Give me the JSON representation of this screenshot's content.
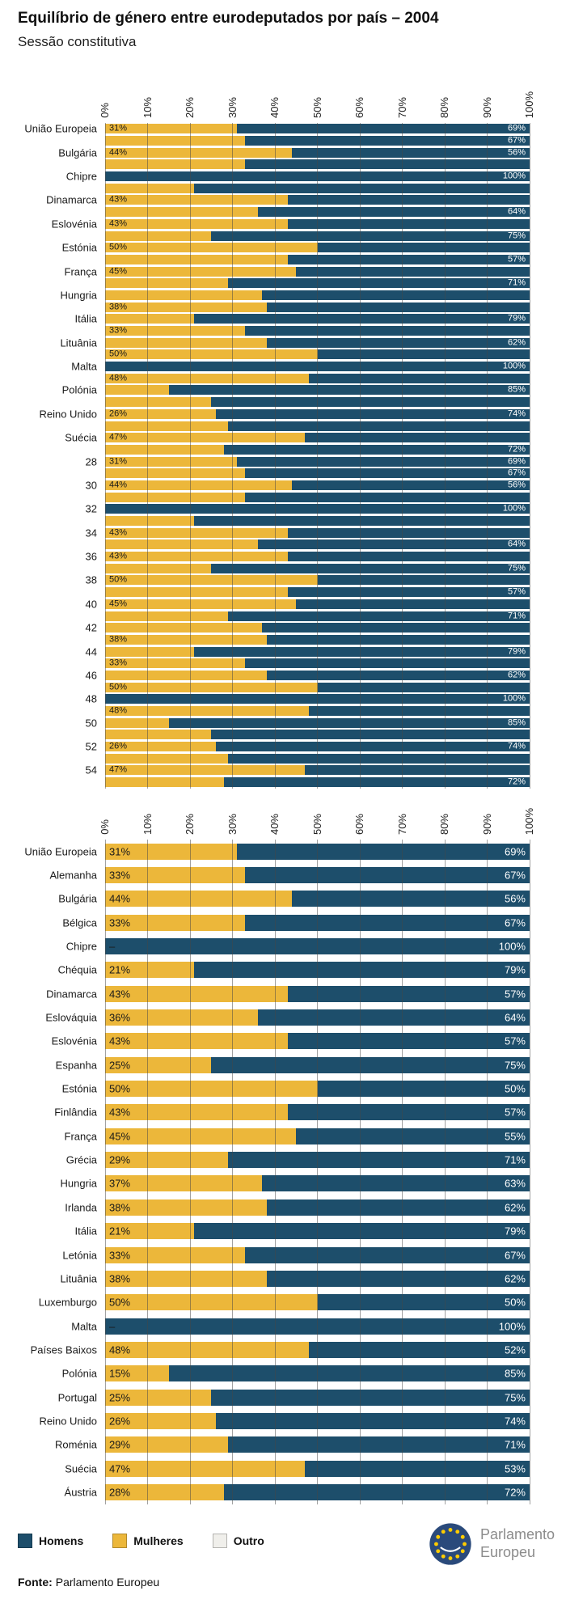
{
  "title": "Equilíbrio de género entre eurodeputados por país – 2004",
  "subtitle": "Sessão constitutiva",
  "colors": {
    "men": "#1D4E6B",
    "women": "#ECB73A",
    "other": "#F0EFEB",
    "grid": "#4A4A4A",
    "value_label_dark": "#1A1A1A",
    "value_label_light": "#FFFFFF"
  },
  "chart_data": [
    {
      "id": "constitutive-session-top-chart",
      "type": "bar",
      "stacked": true,
      "orientation": "horizontal",
      "unit": "%",
      "xlim": [
        0,
        100
      ],
      "grid": true,
      "x_ticks": [
        "0%",
        "10%",
        "20%",
        "30%",
        "40%",
        "50%",
        "60%",
        "70%",
        "80%",
        "90%",
        "100%"
      ],
      "columns": [
        "y_label",
        "women_pct",
        "men_pct",
        "women_label",
        "men_label"
      ],
      "rows": [
        [
          "União Europeia",
          31,
          69,
          "31%",
          "69%"
        ],
        [
          "",
          33,
          67,
          "",
          "67%"
        ],
        [
          "Bulgária",
          44,
          56,
          "44%",
          "56%"
        ],
        [
          "",
          33,
          67,
          "",
          ""
        ],
        [
          "Chipre",
          0,
          100,
          "",
          "100%"
        ],
        [
          "",
          21,
          79,
          "",
          ""
        ],
        [
          "Dinamarca",
          43,
          57,
          "43%",
          ""
        ],
        [
          "",
          36,
          64,
          "",
          "64%"
        ],
        [
          "Eslovénia",
          43,
          57,
          "43%",
          ""
        ],
        [
          "",
          25,
          75,
          "",
          "75%"
        ],
        [
          "Estónia",
          50,
          50,
          "50%",
          ""
        ],
        [
          "",
          43,
          57,
          "",
          "57%"
        ],
        [
          "França",
          45,
          55,
          "45%",
          ""
        ],
        [
          "",
          29,
          71,
          "",
          "71%"
        ],
        [
          "Hungria",
          37,
          63,
          "",
          ""
        ],
        [
          "",
          38,
          62,
          "38%",
          ""
        ],
        [
          "Itália",
          21,
          79,
          "",
          "79%"
        ],
        [
          "",
          33,
          67,
          "33%",
          ""
        ],
        [
          "Lituânia",
          38,
          62,
          "",
          "62%"
        ],
        [
          "",
          50,
          50,
          "50%",
          ""
        ],
        [
          "Malta",
          0,
          100,
          "",
          "100%"
        ],
        [
          "",
          48,
          52,
          "48%",
          ""
        ],
        [
          "Polónia",
          15,
          85,
          "",
          "85%"
        ],
        [
          "",
          25,
          75,
          "",
          ""
        ],
        [
          "Reino Unido",
          26,
          74,
          "26%",
          "74%"
        ],
        [
          "",
          29,
          71,
          "",
          ""
        ],
        [
          "Suécia",
          47,
          53,
          "47%",
          ""
        ],
        [
          "",
          28,
          72,
          "",
          "72%"
        ],
        [
          "28",
          31,
          69,
          "31%",
          "69%"
        ],
        [
          "",
          33,
          67,
          "",
          "67%"
        ],
        [
          "30",
          44,
          56,
          "44%",
          "56%"
        ],
        [
          "",
          33,
          67,
          "",
          ""
        ],
        [
          "32",
          0,
          100,
          "",
          "100%"
        ],
        [
          "",
          21,
          79,
          "",
          ""
        ],
        [
          "34",
          43,
          57,
          "43%",
          ""
        ],
        [
          "",
          36,
          64,
          "",
          "64%"
        ],
        [
          "36",
          43,
          57,
          "43%",
          ""
        ],
        [
          "",
          25,
          75,
          "",
          "75%"
        ],
        [
          "38",
          50,
          50,
          "50%",
          ""
        ],
        [
          "",
          43,
          57,
          "",
          "57%"
        ],
        [
          "40",
          45,
          55,
          "45%",
          ""
        ],
        [
          "",
          29,
          71,
          "",
          "71%"
        ],
        [
          "42",
          37,
          63,
          "",
          ""
        ],
        [
          "",
          38,
          62,
          "38%",
          ""
        ],
        [
          "44",
          21,
          79,
          "",
          "79%"
        ],
        [
          "",
          33,
          67,
          "33%",
          ""
        ],
        [
          "46",
          38,
          62,
          "",
          "62%"
        ],
        [
          "",
          50,
          50,
          "50%",
          ""
        ],
        [
          "48",
          0,
          100,
          "",
          "100%"
        ],
        [
          "",
          48,
          52,
          "48%",
          ""
        ],
        [
          "50",
          15,
          85,
          "",
          "85%"
        ],
        [
          "",
          25,
          75,
          "",
          ""
        ],
        [
          "52",
          26,
          74,
          "26%",
          "74%"
        ],
        [
          "",
          29,
          71,
          "",
          ""
        ],
        [
          "54",
          47,
          53,
          "47%",
          ""
        ],
        [
          "",
          28,
          72,
          "",
          "72%"
        ]
      ]
    },
    {
      "id": "by-country-bottom-chart",
      "type": "bar",
      "stacked": true,
      "orientation": "horizontal",
      "unit": "%",
      "xlim": [
        0,
        100
      ],
      "grid": true,
      "x_ticks": [
        "0%",
        "10%",
        "20%",
        "30%",
        "40%",
        "50%",
        "60%",
        "70%",
        "80%",
        "90%",
        "100%"
      ],
      "columns": [
        "y_label",
        "women_pct",
        "men_pct",
        "women_label",
        "men_label"
      ],
      "rows": [
        [
          "União Europeia",
          31,
          69,
          "31%",
          "69%"
        ],
        [
          "Alemanha",
          33,
          67,
          "33%",
          "67%"
        ],
        [
          "Bulgária",
          44,
          56,
          "44%",
          "56%"
        ],
        [
          "Bélgica",
          33,
          67,
          "33%",
          "67%"
        ],
        [
          "Chipre",
          0,
          100,
          "–",
          "100%"
        ],
        [
          "Chéquia",
          21,
          79,
          "21%",
          "79%"
        ],
        [
          "Dinamarca",
          43,
          57,
          "43%",
          "57%"
        ],
        [
          "Eslováquia",
          36,
          64,
          "36%",
          "64%"
        ],
        [
          "Eslovénia",
          43,
          57,
          "43%",
          "57%"
        ],
        [
          "Espanha",
          25,
          75,
          "25%",
          "75%"
        ],
        [
          "Estónia",
          50,
          50,
          "50%",
          "50%"
        ],
        [
          "Finlândia",
          43,
          57,
          "43%",
          "57%"
        ],
        [
          "França",
          45,
          55,
          "45%",
          "55%"
        ],
        [
          "Grécia",
          29,
          71,
          "29%",
          "71%"
        ],
        [
          "Hungria",
          37,
          63,
          "37%",
          "63%"
        ],
        [
          "Irlanda",
          38,
          62,
          "38%",
          "62%"
        ],
        [
          "Itália",
          21,
          79,
          "21%",
          "79%"
        ],
        [
          "Letónia",
          33,
          67,
          "33%",
          "67%"
        ],
        [
          "Lituânia",
          38,
          62,
          "38%",
          "62%"
        ],
        [
          "Luxemburgo",
          50,
          50,
          "50%",
          "50%"
        ],
        [
          "Malta",
          0,
          100,
          "–",
          "100%"
        ],
        [
          "Países Baixos",
          48,
          52,
          "48%",
          "52%"
        ],
        [
          "Polónia",
          15,
          85,
          "15%",
          "85%"
        ],
        [
          "Portugal",
          25,
          75,
          "25%",
          "75%"
        ],
        [
          "Reino Unido",
          26,
          74,
          "26%",
          "74%"
        ],
        [
          "Roménia",
          29,
          71,
          "29%",
          "71%"
        ],
        [
          "Suécia",
          47,
          53,
          "47%",
          "53%"
        ],
        [
          "Áustria",
          28,
          72,
          "28%",
          "72%"
        ]
      ]
    }
  ],
  "legend": [
    {
      "label": "Homens",
      "color": "#1D4E6B"
    },
    {
      "label": "Mulheres",
      "color": "#ECB73A"
    },
    {
      "label": "Outro",
      "color": "#F0EFEB"
    }
  ],
  "footer": {
    "source_label": "Fonte:",
    "source_value": "Parlamento Europeu"
  },
  "logo": {
    "line1": "Parlamento",
    "line2": "Europeu"
  }
}
